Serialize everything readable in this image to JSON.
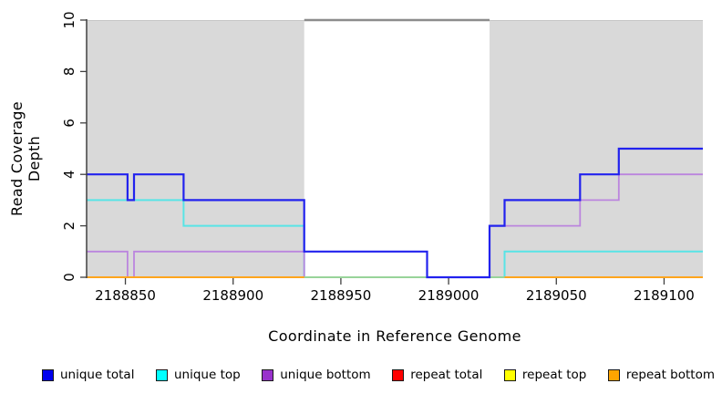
{
  "chart_data": {
    "type": "line",
    "title": "",
    "xlabel": "Coordinate in Reference Genome",
    "ylabel": "Read Coverage Depth",
    "xlim": [
      2188832,
      2189118
    ],
    "ylim": [
      0,
      10
    ],
    "x_ticks": [
      2188850,
      2188900,
      2188950,
      2189000,
      2189050,
      2189100
    ],
    "y_ticks": [
      0,
      2,
      4,
      6,
      8,
      10
    ],
    "grid": false,
    "legend_position": "bottom",
    "axis_color": "#404040",
    "shaded_regions": [
      {
        "x0": 2188832,
        "x1": 2188933,
        "color": "#d9d9d9"
      },
      {
        "x0": 2189019,
        "x1": 2189118,
        "color": "#d9d9d9"
      }
    ],
    "offscale_line": {
      "x0": 2188933,
      "x1": 2189019,
      "depth": 10,
      "color": "#8c8c8c",
      "width": 2.5
    },
    "overlap_segments": [
      {
        "comment": "cyan+orange blend visible at depth 0 across uncovered gap",
        "color": "#98d49a",
        "z": 5,
        "width": 2,
        "segments": [
          [
            [
              2188933,
              0
            ],
            [
              2189026,
              0
            ]
          ]
        ]
      }
    ],
    "series": [
      {
        "name": "unique total",
        "color": "#2222ee",
        "legend_color": "#0000ee",
        "z": 7,
        "width": 2.2,
        "segments": [
          [
            [
              2188832,
              4
            ],
            [
              2188851,
              4
            ],
            [
              2188851,
              3
            ],
            [
              2188854,
              3
            ],
            [
              2188854,
              4
            ],
            [
              2188877,
              4
            ],
            [
              2188877,
              3
            ],
            [
              2188933,
              3
            ],
            [
              2188933,
              1
            ],
            [
              2188990,
              1
            ],
            [
              2188990,
              0
            ],
            [
              2189019,
              0
            ],
            [
              2189019,
              2
            ],
            [
              2189026,
              2
            ],
            [
              2189026,
              3
            ],
            [
              2189061,
              3
            ],
            [
              2189061,
              4
            ],
            [
              2189079,
              4
            ],
            [
              2189079,
              5
            ],
            [
              2189118,
              5
            ]
          ]
        ]
      },
      {
        "name": "unique top",
        "color": "#58e4e6",
        "legend_color": "#00ffff",
        "z": 3,
        "width": 2,
        "segments": [
          [
            [
              2188832,
              3
            ],
            [
              2188877,
              3
            ],
            [
              2188877,
              2
            ],
            [
              2188933,
              2
            ],
            [
              2188933,
              0
            ],
            [
              2189026,
              0
            ],
            [
              2189026,
              1
            ],
            [
              2189118,
              1
            ]
          ]
        ]
      },
      {
        "name": "unique bottom",
        "color": "#bb85de",
        "legend_color": "#9932cc",
        "z": 4,
        "width": 1.8,
        "segments": [
          [
            [
              2188832,
              1
            ],
            [
              2188851,
              1
            ],
            [
              2188851,
              0
            ],
            [
              2188854,
              0
            ],
            [
              2188854,
              1
            ],
            [
              2188933,
              1
            ],
            [
              2188933,
              0
            ],
            [
              2189019,
              0
            ],
            [
              2189019,
              2
            ],
            [
              2189061,
              2
            ],
            [
              2189061,
              3
            ],
            [
              2189079,
              3
            ],
            [
              2189079,
              4
            ],
            [
              2189118,
              4
            ]
          ]
        ]
      },
      {
        "name": "repeat total",
        "color": "#ee0000",
        "legend_color": "#ff0000",
        "z": 1,
        "width": 2,
        "segments": [
          [
            [
              2188832,
              0
            ],
            [
              2189118,
              0
            ]
          ]
        ]
      },
      {
        "name": "repeat top",
        "color": "#ffff00",
        "legend_color": "#ffff00",
        "z": 2,
        "width": 2,
        "segments": [
          [
            [
              2188832,
              0
            ],
            [
              2189118,
              0
            ]
          ]
        ]
      },
      {
        "name": "repeat bottom",
        "color": "#ffa51e",
        "legend_color": "#ffa500",
        "z": 6,
        "width": 2,
        "segments": [
          [
            [
              2188832,
              0
            ],
            [
              2188933,
              0
            ]
          ],
          [
            [
              2189026,
              0
            ],
            [
              2189118,
              0
            ]
          ]
        ]
      }
    ]
  }
}
